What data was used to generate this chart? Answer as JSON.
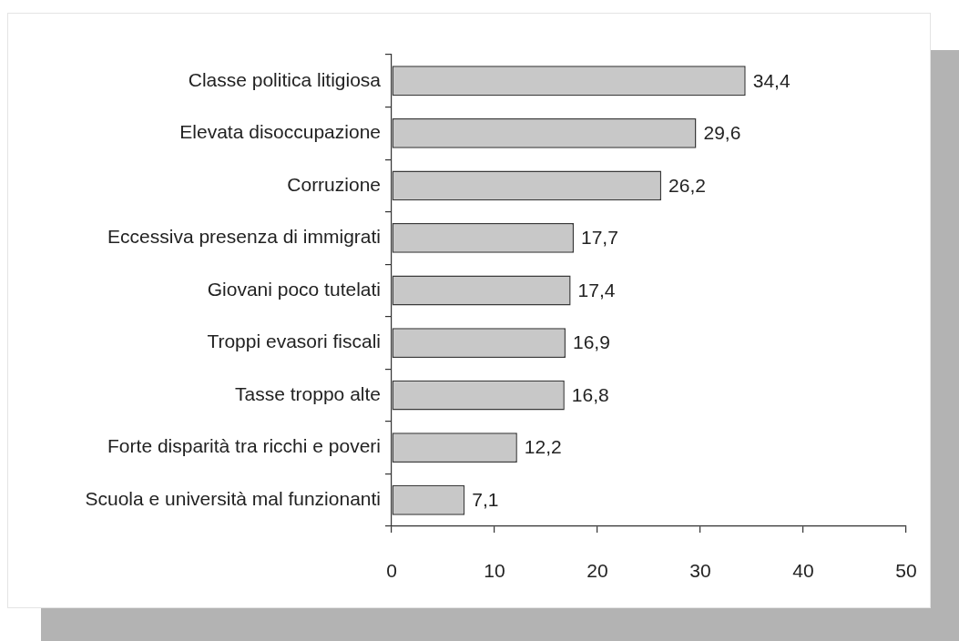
{
  "chart_data": {
    "type": "bar",
    "orientation": "horizontal",
    "categories": [
      "Classe politica litigiosa",
      "Elevata disoccupazione",
      "Corruzione",
      "Eccessiva presenza di immigrati",
      "Giovani poco tutelati",
      "Troppi evasori fiscali",
      "Tasse troppo alte",
      "Forte disparità tra ricchi e poveri",
      "Scuola e università mal funzionanti"
    ],
    "values": [
      34.4,
      29.6,
      26.2,
      17.7,
      17.4,
      16.9,
      16.8,
      12.2,
      7.1
    ],
    "value_labels": [
      "34,4",
      "29,6",
      "26,2",
      "17,7",
      "17,4",
      "16,9",
      "16,8",
      "12,2",
      "7,1"
    ],
    "color": "#c8c8c8",
    "xlim": [
      0,
      50
    ],
    "xticks": [
      0,
      10,
      20,
      30,
      40,
      50
    ]
  }
}
